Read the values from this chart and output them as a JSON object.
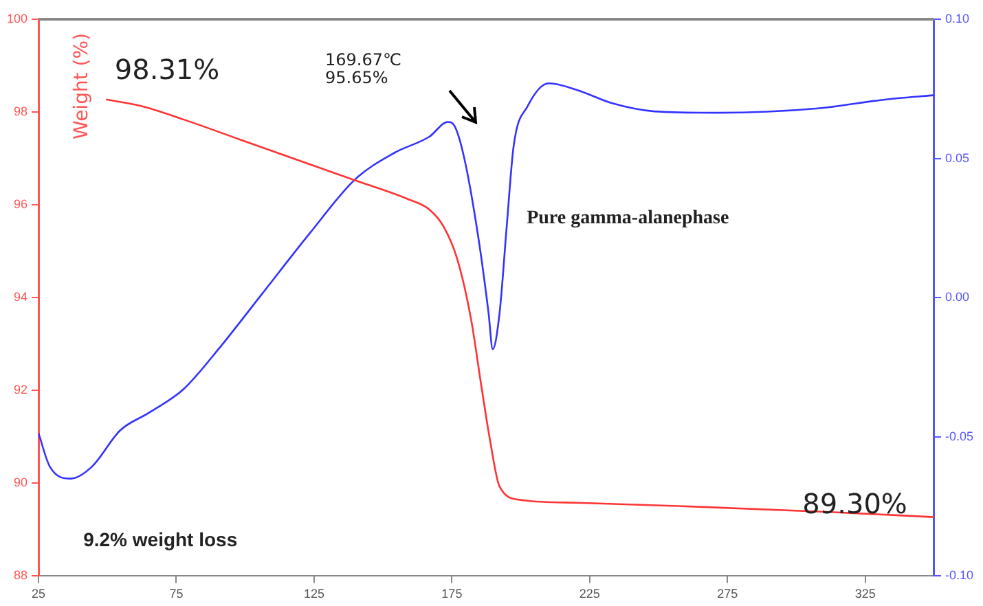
{
  "chart_data": {
    "type": "line",
    "ylabel": "Weight (%)",
    "xlim": [
      25,
      350
    ],
    "xticks": [
      25,
      75,
      125,
      175,
      225,
      275,
      325
    ],
    "ylim": [
      88,
      100
    ],
    "yticks": [
      88,
      90,
      92,
      94,
      96,
      98,
      100
    ],
    "y2lim": [
      -0.1,
      0.1
    ],
    "y2ticks": [
      {
        "value": -0.1,
        "label": "-0.10"
      },
      -0.05,
      {
        "value": 0,
        "label": "0.00"
      },
      0.05,
      {
        "value": 0.1,
        "label": "0.10"
      }
    ],
    "grid": false,
    "legend": false,
    "marker": "none",
    "line_style": "solid",
    "annotations": [
      "98.31%",
      "169.67℃\n95.65%",
      "Pure gamma-alanephase",
      "89.30%",
      "9.2% weight loss"
    ],
    "series": [
      {
        "color": "#ff3333",
        "x": [
          49.5,
          62.2,
          77.6,
          98,
          118.4,
          138.8,
          159.2,
          166.8,
          171.9,
          177,
          182,
          185.7,
          188.8,
          192.3,
          200,
          220.4,
          261.2,
          312.2,
          350
        ],
        "values": [
          98.27,
          98.13,
          97.84,
          97.41,
          96.98,
          96.55,
          96.12,
          95.9,
          95.54,
          94.82,
          93.52,
          92.09,
          90.94,
          89.93,
          89.64,
          89.58,
          89.5,
          89.38,
          89.27
        ]
      },
      {
        "color": "#3333ff",
        "axis": "y2",
        "x": [
          25,
          29.1,
          36.7,
          44.4,
          54.6,
          64.8,
          77.6,
          90.3,
          105.6,
          123.5,
          139.8,
          154.1,
          166.8,
          173.5,
          176,
          179.6,
          184.7,
          188.3,
          189.8,
          192.3,
          194.9,
          197.4,
          202.5,
          210.2,
          220.4,
          233.2,
          248.5,
          271.4,
          307.1,
          332.7,
          350
        ],
        "values": [
          -0.0487,
          -0.0607,
          -0.065,
          -0.0607,
          -0.0477,
          -0.0415,
          -0.0329,
          -0.0185,
          0.0007,
          0.0232,
          0.0424,
          0.052,
          0.0578,
          0.0631,
          0.0616,
          0.0496,
          0.0209,
          -0.0055,
          -0.0185,
          -0.0055,
          0.0257,
          0.0544,
          0.0688,
          0.077,
          0.0746,
          0.0698,
          0.0669,
          0.0664,
          0.0679,
          0.0712,
          0.0727
        ]
      }
    ]
  }
}
